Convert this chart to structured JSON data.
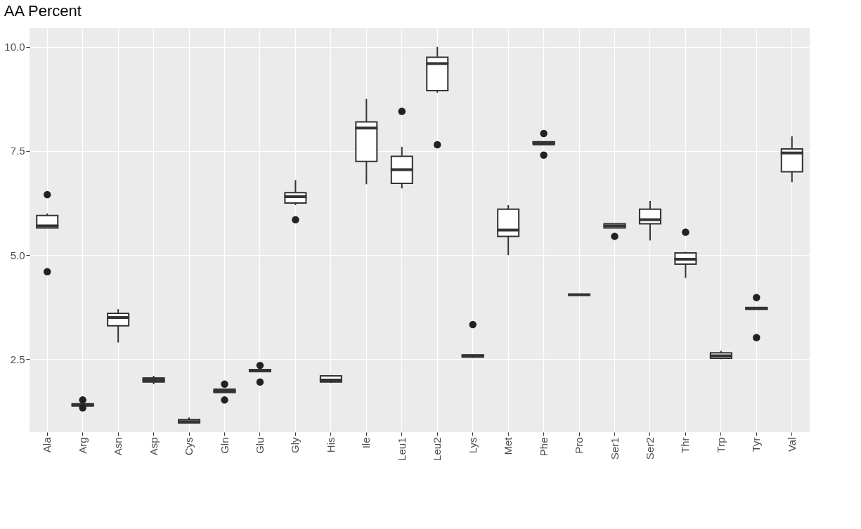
{
  "chart_data": {
    "type": "box",
    "title": "AA Percent",
    "categories": [
      "Ala",
      "Arg",
      "Asn",
      "Asp",
      "Cys",
      "Gln",
      "Glu",
      "Gly",
      "His",
      "Ile",
      "Leu1",
      "Leu2",
      "Lys",
      "Met",
      "Phe",
      "Pro",
      "Ser1",
      "Ser2",
      "Thr",
      "Trp",
      "Tyr",
      "Val"
    ],
    "boxes": [
      {
        "low": 5.65,
        "q1": 5.65,
        "median": 5.7,
        "q3": 5.95,
        "high": 6.0,
        "outliers": [
          6.45,
          4.6
        ]
      },
      {
        "low": 1.35,
        "q1": 1.38,
        "median": 1.4,
        "q3": 1.43,
        "high": 1.45,
        "outliers": [
          1.52,
          1.33
        ]
      },
      {
        "low": 2.9,
        "q1": 3.3,
        "median": 3.5,
        "q3": 3.6,
        "high": 3.7
      },
      {
        "low": 1.9,
        "q1": 1.95,
        "median": 2.0,
        "q3": 2.05,
        "high": 2.1
      },
      {
        "low": 0.97,
        "q1": 0.97,
        "median": 1.0,
        "q3": 1.05,
        "high": 1.1
      },
      {
        "low": 1.7,
        "q1": 1.7,
        "median": 1.73,
        "q3": 1.78,
        "high": 1.78,
        "outliers": [
          1.9,
          1.52
        ]
      },
      {
        "low": 2.2,
        "q1": 2.2,
        "median": 2.22,
        "q3": 2.25,
        "high": 2.25,
        "outliers": [
          2.35,
          1.95
        ]
      },
      {
        "low": 6.2,
        "q1": 6.25,
        "median": 6.4,
        "q3": 6.5,
        "high": 6.8,
        "outliers": [
          5.85
        ]
      },
      {
        "low": 1.93,
        "q1": 1.95,
        "median": 2.0,
        "q3": 2.1,
        "high": 2.12
      },
      {
        "low": 6.7,
        "q1": 7.25,
        "median": 8.05,
        "q3": 8.2,
        "high": 8.75
      },
      {
        "low": 6.6,
        "q1": 6.72,
        "median": 7.05,
        "q3": 7.37,
        "high": 7.6,
        "outliers": [
          8.45
        ]
      },
      {
        "low": 8.9,
        "q1": 8.95,
        "median": 9.6,
        "q3": 9.75,
        "high": 10.0,
        "outliers": [
          7.65
        ]
      },
      {
        "low": 2.53,
        "q1": 2.55,
        "median": 2.58,
        "q3": 2.6,
        "high": 2.6,
        "outliers": [
          3.33
        ]
      },
      {
        "low": 5.0,
        "q1": 5.45,
        "median": 5.6,
        "q3": 6.1,
        "high": 6.2
      },
      {
        "low": 7.65,
        "q1": 7.65,
        "median": 7.7,
        "q3": 7.72,
        "high": 7.72,
        "outliers": [
          7.92,
          7.4
        ]
      },
      {
        "low": 4.05,
        "q1": 4.05,
        "median": 4.05,
        "q3": 4.05,
        "high": 4.05
      },
      {
        "low": 5.65,
        "q1": 5.65,
        "median": 5.7,
        "q3": 5.75,
        "high": 5.75,
        "outliers": [
          5.45
        ]
      },
      {
        "low": 5.35,
        "q1": 5.75,
        "median": 5.85,
        "q3": 6.1,
        "high": 6.3
      },
      {
        "low": 4.45,
        "q1": 4.78,
        "median": 4.9,
        "q3": 5.05,
        "high": 5.08,
        "outliers": [
          5.55
        ]
      },
      {
        "low": 2.5,
        "q1": 2.52,
        "median": 2.58,
        "q3": 2.65,
        "high": 2.7
      },
      {
        "low": 3.72,
        "q1": 3.7,
        "median": 3.72,
        "q3": 3.74,
        "high": 3.74,
        "outliers": [
          3.98,
          3.02
        ]
      },
      {
        "low": 6.75,
        "q1": 7.0,
        "median": 7.45,
        "q3": 7.55,
        "high": 7.85
      }
    ],
    "ylim": [
      0.75,
      10.45
    ],
    "yticks": [
      {
        "value": 2.5,
        "label": "2.5"
      },
      {
        "value": 5,
        "label": "5.0"
      },
      {
        "value": 7.5,
        "label": "7.5"
      },
      {
        "value": 10,
        "label": "10.0"
      }
    ],
    "grid": true
  }
}
